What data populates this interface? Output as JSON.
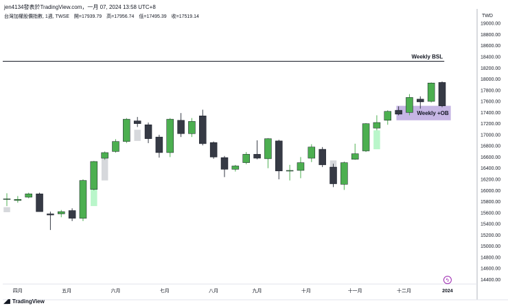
{
  "header": {
    "title": "jen4134發表於TradingView.com，一月 07, 2024 13:58 UTC+8",
    "symbol_line": "台灣加權股價指數, 1週, TWSE",
    "ohlc": {
      "open": "開=17939.79",
      "high": "高=17956.74",
      "low": "低=17495.39",
      "close": "收=17519.14"
    }
  },
  "footer": {
    "logo_text": "TradingView"
  },
  "colors": {
    "up": "#4caf50",
    "down": "#363a45",
    "bsl_line": "#131722",
    "ob_zone": "#b39ddb",
    "fvg_up": "#b9f6ca",
    "fvg_down": "#d6d8dc"
  },
  "chart_data": {
    "type": "candlestick",
    "title": "",
    "currency": "TWD",
    "y_range": [
      14200,
      19200
    ],
    "y_ticks": [
      19000,
      18800,
      18600,
      18400,
      18200,
      18000,
      17800,
      17600,
      17400,
      17200,
      17000,
      16800,
      16600,
      16400,
      16200,
      16000,
      15800,
      15600,
      15400,
      15200,
      15000,
      14800,
      14600,
      14400
    ],
    "x_labels": [
      {
        "label": "四月",
        "index": 1
      },
      {
        "label": "五月",
        "index": 5.5
      },
      {
        "label": "六月",
        "index": 10
      },
      {
        "label": "七月",
        "index": 14.5
      },
      {
        "label": "八月",
        "index": 19
      },
      {
        "label": "九月",
        "index": 23
      },
      {
        "label": "十月",
        "index": 27.5
      },
      {
        "label": "十一月",
        "index": 32
      },
      {
        "label": "十二月",
        "index": 36.5
      },
      {
        "label": "2024",
        "index": 40.5,
        "bold": true
      }
    ],
    "candles": [
      {
        "o": 15840,
        "h": 15950,
        "l": 15720,
        "c": 15850
      },
      {
        "o": 15820,
        "h": 15900,
        "l": 15780,
        "c": 15840
      },
      {
        "o": 15880,
        "h": 15960,
        "l": 15860,
        "c": 15940
      },
      {
        "o": 15940,
        "h": 15960,
        "l": 15620,
        "c": 15620
      },
      {
        "o": 15580,
        "h": 15620,
        "l": 15290,
        "c": 15560
      },
      {
        "o": 15580,
        "h": 15650,
        "l": 15520,
        "c": 15620
      },
      {
        "o": 15640,
        "h": 15680,
        "l": 15450,
        "c": 15500
      },
      {
        "o": 15500,
        "h": 16200,
        "l": 15450,
        "c": 16180
      },
      {
        "o": 16020,
        "h": 16530,
        "l": 16000,
        "c": 16520
      },
      {
        "o": 16580,
        "h": 16700,
        "l": 16550,
        "c": 16680
      },
      {
        "o": 16700,
        "h": 16920,
        "l": 16680,
        "c": 16880
      },
      {
        "o": 16880,
        "h": 17300,
        "l": 16850,
        "c": 17280
      },
      {
        "o": 17250,
        "h": 17320,
        "l": 17140,
        "c": 17200
      },
      {
        "o": 17180,
        "h": 17220,
        "l": 16850,
        "c": 16930
      },
      {
        "o": 16960,
        "h": 17000,
        "l": 16590,
        "c": 16680
      },
      {
        "o": 16680,
        "h": 17300,
        "l": 16600,
        "c": 17280
      },
      {
        "o": 17260,
        "h": 17390,
        "l": 16960,
        "c": 17020
      },
      {
        "o": 17020,
        "h": 17300,
        "l": 16960,
        "c": 17240
      },
      {
        "o": 17340,
        "h": 17450,
        "l": 16810,
        "c": 16840
      },
      {
        "o": 16860,
        "h": 16880,
        "l": 16570,
        "c": 16600
      },
      {
        "o": 16590,
        "h": 16620,
        "l": 16240,
        "c": 16380
      },
      {
        "o": 16380,
        "h": 16460,
        "l": 16340,
        "c": 16440
      },
      {
        "o": 16500,
        "h": 16690,
        "l": 16470,
        "c": 16650
      },
      {
        "o": 16650,
        "h": 16900,
        "l": 16560,
        "c": 16580
      },
      {
        "o": 16570,
        "h": 16940,
        "l": 16400,
        "c": 16930
      },
      {
        "o": 16890,
        "h": 16910,
        "l": 16200,
        "c": 16350
      },
      {
        "o": 16350,
        "h": 16460,
        "l": 16180,
        "c": 16360
      },
      {
        "o": 16360,
        "h": 16600,
        "l": 16220,
        "c": 16500
      },
      {
        "o": 16580,
        "h": 16830,
        "l": 16510,
        "c": 16780
      },
      {
        "o": 16740,
        "h": 16780,
        "l": 16420,
        "c": 16460
      },
      {
        "o": 16420,
        "h": 16480,
        "l": 16060,
        "c": 16120
      },
      {
        "o": 16110,
        "h": 16520,
        "l": 16010,
        "c": 16500
      },
      {
        "o": 16560,
        "h": 16840,
        "l": 16550,
        "c": 16660
      },
      {
        "o": 16710,
        "h": 17210,
        "l": 16690,
        "c": 17200
      },
      {
        "o": 17120,
        "h": 17350,
        "l": 17080,
        "c": 17220
      },
      {
        "o": 17260,
        "h": 17440,
        "l": 17180,
        "c": 17420
      },
      {
        "o": 17440,
        "h": 17510,
        "l": 17350,
        "c": 17370
      },
      {
        "o": 17400,
        "h": 17730,
        "l": 17350,
        "c": 17670
      },
      {
        "o": 17640,
        "h": 17690,
        "l": 17470,
        "c": 17590
      },
      {
        "o": 17600,
        "h": 17940,
        "l": 17580,
        "c": 17930
      },
      {
        "o": 17939.79,
        "h": 17956.74,
        "l": 17495.39,
        "c": 17519.14
      }
    ],
    "annotations": [
      {
        "type": "hline",
        "label": "Weekly BSL",
        "price": 18320,
        "from_index": -0.5,
        "to_index": 40.2
      },
      {
        "type": "zone",
        "label": "Weekly +OB",
        "top": 17520,
        "bottom": 17260,
        "from_index": 35.8,
        "to_index": 40.8
      },
      {
        "type": "fvg",
        "color_key": "fvg_down",
        "top": 15700,
        "bottom": 15610,
        "from_index": -0.3,
        "to_index": 0.3
      },
      {
        "type": "fvg",
        "color_key": "fvg_up",
        "top": 16120,
        "bottom": 15720,
        "from_index": 7.7,
        "to_index": 8.3
      },
      {
        "type": "fvg",
        "color_key": "fvg_down",
        "top": 16590,
        "bottom": 16180,
        "from_index": 8.7,
        "to_index": 9.3
      },
      {
        "type": "fvg",
        "color_key": "fvg_down",
        "top": 17090,
        "bottom": 16890,
        "from_index": 11.7,
        "to_index": 12.3
      },
      {
        "type": "fvg",
        "color_key": "fvg_down",
        "top": 16540,
        "bottom": 16390,
        "from_index": 29.7,
        "to_index": 30.3
      },
      {
        "type": "fvg",
        "color_key": "fvg_up",
        "top": 17080,
        "bottom": 16740,
        "from_index": 33.7,
        "to_index": 34.3
      }
    ]
  }
}
